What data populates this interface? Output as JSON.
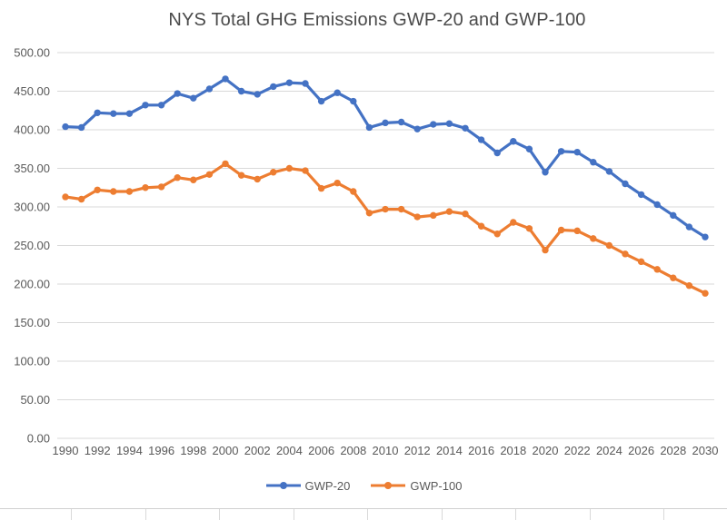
{
  "chart_data": {
    "type": "line",
    "title": "NYS Total GHG Emissions GWP-20 and GWP-100",
    "xlabel": "",
    "ylabel": "",
    "x": [
      1990,
      1991,
      1992,
      1993,
      1994,
      1995,
      1996,
      1997,
      1998,
      1999,
      2000,
      2001,
      2002,
      2003,
      2004,
      2005,
      2006,
      2007,
      2008,
      2009,
      2010,
      2011,
      2012,
      2013,
      2014,
      2015,
      2016,
      2017,
      2018,
      2019,
      2020,
      2021,
      2022,
      2023,
      2024,
      2025,
      2026,
      2027,
      2028,
      2029,
      2030
    ],
    "x_tick_labels": [
      "1990",
      "1992",
      "1994",
      "1996",
      "1998",
      "2000",
      "2002",
      "2004",
      "2006",
      "2008",
      "2010",
      "2012",
      "2014",
      "2016",
      "2018",
      "2020",
      "2022",
      "2024",
      "2026",
      "2028",
      "2030"
    ],
    "y_tick_labels": [
      "500.00",
      "450.00",
      "400.00",
      "350.00",
      "300.00",
      "250.00",
      "200.00",
      "150.00",
      "100.00",
      "50.00",
      "0.00"
    ],
    "ylim": [
      0,
      500
    ],
    "grid": true,
    "legend_position": "bottom",
    "marker": "circle",
    "series": [
      {
        "name": "GWP-20",
        "color": "#4472C4",
        "values": [
          404,
          403,
          422,
          421,
          421,
          432,
          432,
          447,
          441,
          453,
          466,
          450,
          446,
          456,
          461,
          460,
          437,
          448,
          437,
          403,
          409,
          410,
          401,
          407,
          408,
          402,
          387,
          370,
          385,
          375,
          345,
          372,
          371,
          358,
          346,
          330,
          316,
          303,
          289,
          274,
          261
        ]
      },
      {
        "name": "GWP-100",
        "color": "#ED7D31",
        "values": [
          313,
          310,
          322,
          320,
          320,
          325,
          326,
          338,
          335,
          342,
          356,
          341,
          336,
          345,
          350,
          347,
          324,
          331,
          320,
          292,
          297,
          297,
          287,
          289,
          294,
          291,
          275,
          265,
          280,
          272,
          244,
          270,
          269,
          259,
          250,
          239,
          229,
          219,
          208,
          198,
          188
        ]
      }
    ]
  },
  "colors": {
    "title_text": "#4a4a4a",
    "axis_text": "#595959",
    "gridline": "#d9d9d9",
    "background": "#ffffff",
    "sheet_gridline": "#d0d0d0",
    "series_blue": "#4472C4",
    "series_orange": "#ED7D31"
  }
}
